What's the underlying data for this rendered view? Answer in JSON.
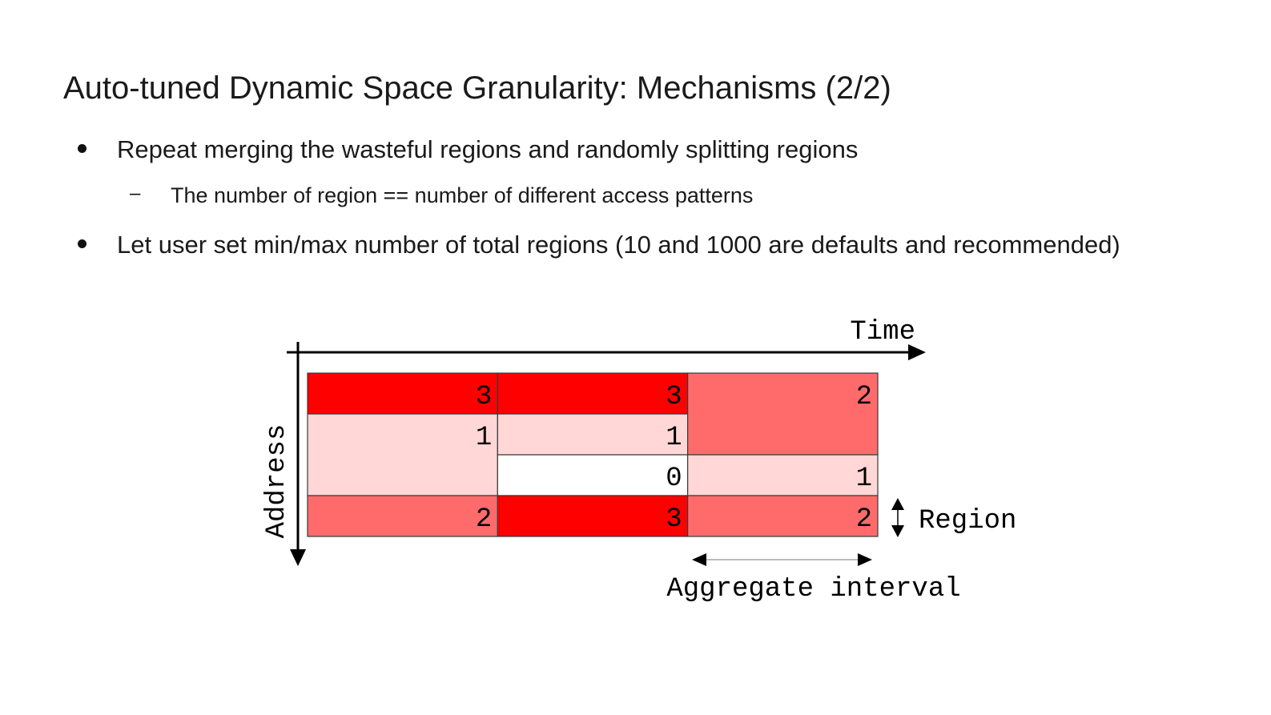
{
  "title": "Auto-tuned Dynamic Space Granularity: Mechanisms (2/2)",
  "bullets": [
    {
      "text": "Repeat merging the wasteful regions and randomly splitting regions",
      "sub": [
        "The number of region == number of different access patterns"
      ]
    },
    {
      "text": "Let user set min/max number of total regions (10 and 1000 are defaults and recommended)"
    }
  ],
  "diagram": {
    "time_label": "Time",
    "address_label": "Address",
    "region_label": "Region",
    "aggregate_label": "Aggregate interval",
    "columns": [
      {
        "regions": [
          {
            "span": 1,
            "value": "3"
          },
          {
            "span": 2,
            "value": "1"
          },
          {
            "span": 1,
            "value": "2"
          }
        ]
      },
      {
        "regions": [
          {
            "span": 1,
            "value": "3"
          },
          {
            "span": 1,
            "value": "1"
          },
          {
            "span": 1,
            "value": "0"
          },
          {
            "span": 1,
            "value": "3"
          }
        ]
      },
      {
        "regions": [
          {
            "span": 2,
            "value": "2"
          },
          {
            "span": 1,
            "value": "1"
          },
          {
            "span": 1,
            "value": "2"
          }
        ]
      }
    ],
    "value_colors": {
      "0": "#ffffff",
      "1": "#ffd7d7",
      "2": "#ff6b6b",
      "3": "#ff0000"
    }
  }
}
